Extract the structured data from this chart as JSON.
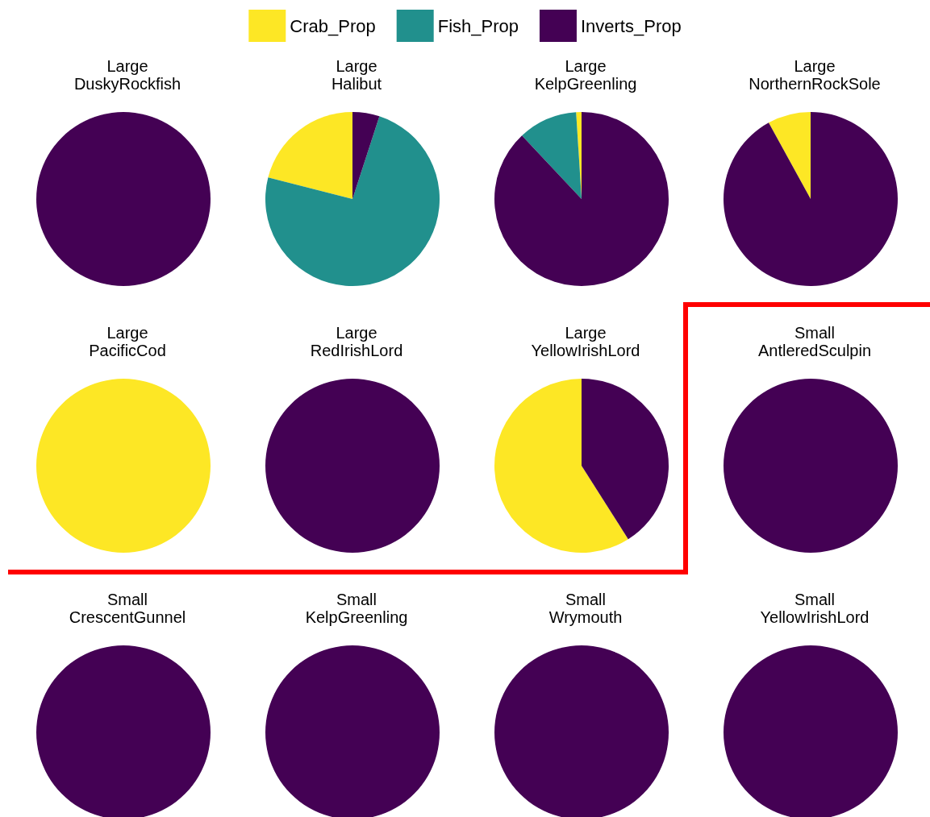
{
  "chart_data": {
    "type": "pie",
    "categories": [
      "Crab_Prop",
      "Fish_Prop",
      "Inverts_Prop"
    ],
    "colors": [
      "#fde725",
      "#21908d",
      "#440154"
    ],
    "legend": "top",
    "series": [
      {
        "name": "Large\nDuskyRockfish",
        "values": [
          0,
          0,
          100
        ]
      },
      {
        "name": "Large\nHalibut",
        "values": [
          21,
          74,
          5
        ]
      },
      {
        "name": "Large\nKelpGreenling",
        "values": [
          1,
          11,
          88
        ]
      },
      {
        "name": "Large\nNorthernRockSole",
        "values": [
          8,
          0,
          92
        ]
      },
      {
        "name": "Large\nPacificCod",
        "values": [
          100,
          0,
          0
        ]
      },
      {
        "name": "Large\nRedIrishLord",
        "values": [
          0,
          0,
          100
        ]
      },
      {
        "name": "Large\nYellowIrishLord",
        "values": [
          59,
          0,
          41
        ]
      },
      {
        "name": "Small\nAntleredSculpin",
        "values": [
          0,
          0,
          100
        ]
      },
      {
        "name": "Small\nCrescentGunnel",
        "values": [
          0,
          0,
          100
        ]
      },
      {
        "name": "Small\nKelpGreenling",
        "values": [
          0,
          0,
          100
        ]
      },
      {
        "name": "Small\nWrymouth",
        "values": [
          0,
          0,
          100
        ]
      },
      {
        "name": "Small\nYellowIrishLord",
        "values": [
          0,
          0,
          100
        ]
      }
    ]
  }
}
